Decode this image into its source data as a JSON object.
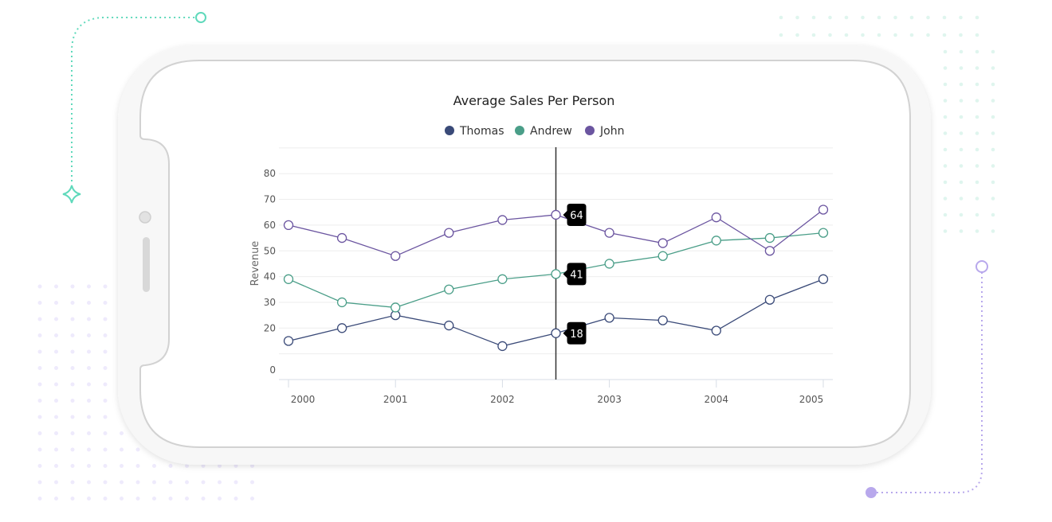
{
  "colors": {
    "Thomas": "#3a4a78",
    "Andrew": "#4a9e88",
    "John": "#6b55a0",
    "accent_green": "#5fd9bb",
    "accent_purple": "#b8a8ec",
    "tooltip_bg": "#000000"
  },
  "chart_data": {
    "type": "line",
    "title": "Average Sales Per Person",
    "ylabel": "Revenue",
    "xlabel": "",
    "x": [
      2000,
      2000.5,
      2001,
      2001.5,
      2002,
      2002.5,
      2003,
      2003.5,
      2004,
      2004.5,
      2005
    ],
    "x_tick_labels": [
      "2000",
      "2001",
      "2002",
      "2003",
      "2004",
      "2005"
    ],
    "y_tick_labels": [
      "0",
      "20",
      "30",
      "40",
      "50",
      "60",
      "70",
      "80"
    ],
    "ylim": [
      0,
      90
    ],
    "xlim": [
      2000,
      2005
    ],
    "grid": true,
    "legend_position": "top",
    "series": [
      {
        "name": "Thomas",
        "values": [
          15,
          20,
          25,
          21,
          13,
          18,
          24,
          23,
          19,
          31,
          39
        ]
      },
      {
        "name": "Andrew",
        "values": [
          39,
          30,
          28,
          35,
          39,
          41,
          45,
          48,
          54,
          55,
          57
        ]
      },
      {
        "name": "John",
        "values": [
          60,
          55,
          48,
          57,
          62,
          64,
          57,
          53,
          63,
          50,
          66
        ]
      }
    ],
    "crosshair_x": 2002.5,
    "tooltips": [
      "64",
      "41",
      "18"
    ]
  }
}
